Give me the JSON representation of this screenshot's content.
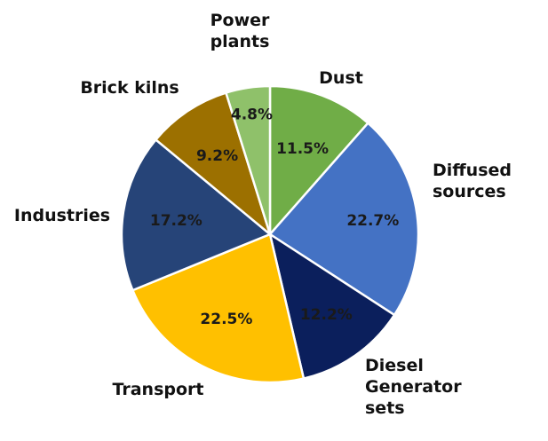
{
  "chart_data": {
    "type": "pie",
    "title": "",
    "slices": [
      {
        "label": "Dust",
        "value": 11.5,
        "pct_text": "11.5%",
        "color": "#70AD47"
      },
      {
        "label": "Diffused sources",
        "value": 22.7,
        "pct_text": "22.7%",
        "color": "#4472C4"
      },
      {
        "label": "Diesel Generator sets",
        "value": 12.2,
        "pct_text": "12.2%",
        "color": "#0B1F5C"
      },
      {
        "label": "Transport",
        "value": 22.5,
        "pct_text": "22.5%",
        "color": "#FFC000"
      },
      {
        "label": "Industries",
        "value": 17.2,
        "pct_text": "17.2%",
        "color": "#264478"
      },
      {
        "label": "Brick kilns",
        "value": 9.2,
        "pct_text": "9.2%",
        "color": "#9C7000"
      },
      {
        "label": "Power plants",
        "value": 4.8,
        "pct_text": "4.8%",
        "color": "#8FC16A"
      }
    ],
    "start_angle_deg": 0,
    "direction": "clockwise",
    "legend": "none",
    "labels": "outside-category-inside-percent"
  }
}
